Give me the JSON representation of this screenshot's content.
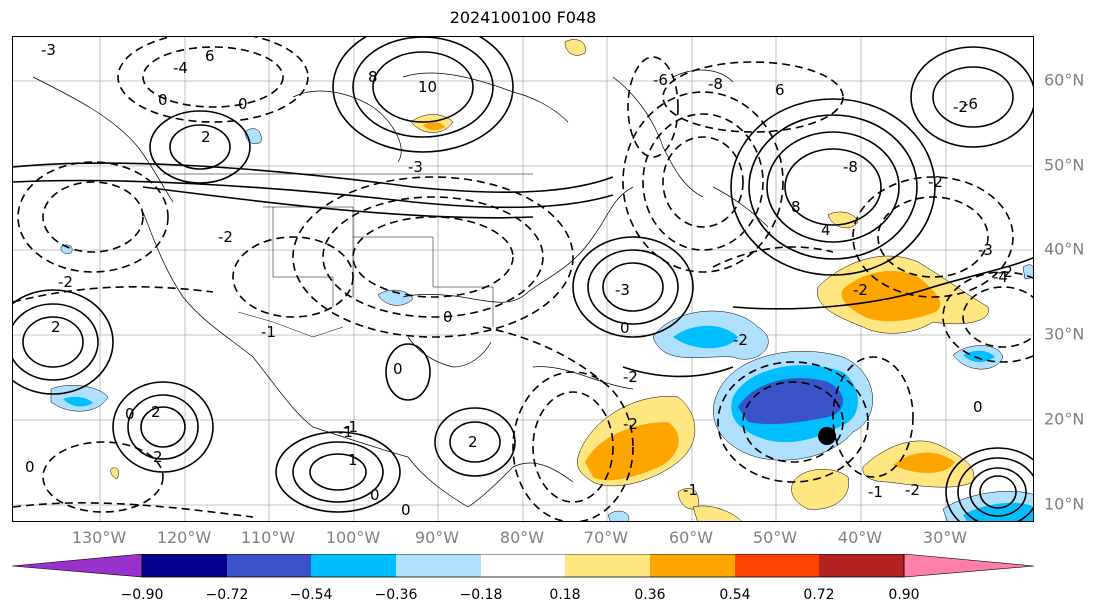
{
  "title": "2024100100 F048",
  "map": {
    "lon_labels": [
      "130°W",
      "120°W",
      "110°W",
      "100°W",
      "90°W",
      "80°W",
      "70°W",
      "60°W",
      "50°W",
      "40°W",
      "30°W"
    ],
    "lat_labels": [
      "60°N",
      "50°N",
      "40°N",
      "30°N",
      "20°N",
      "10°N"
    ],
    "contour_labels": [
      "-3",
      "6",
      "-4",
      "0",
      "0",
      "8",
      "10",
      "6",
      "-8",
      "-3",
      "2",
      "-2",
      "-6",
      "-2",
      "-2",
      "-2",
      "2",
      "-3",
      "-2",
      "0",
      "-1",
      "2",
      "-1",
      "-2",
      "-8",
      "8",
      "4",
      "-6",
      "-2",
      "0",
      "-3",
      "-4",
      "2",
      "1",
      "0",
      "2",
      "-1",
      "-2",
      "-2",
      "0",
      "0",
      "-1",
      "0",
      "0",
      "-2",
      "-1",
      "0"
    ],
    "marker": "black-dot"
  },
  "colorbar": {
    "ticks": [
      "−0.90",
      "−0.72",
      "−0.54",
      "−0.36",
      "−0.18",
      "0.18",
      "0.36",
      "0.54",
      "0.72",
      "0.90"
    ],
    "colors": [
      "#9932cc",
      "#00008b",
      "#3a53c9",
      "#00bfff",
      "#b0e0ff",
      "#ffffff",
      "#ffe680",
      "#ffa500",
      "#ff4500",
      "#b22222",
      "#ff7fa8"
    ]
  }
}
